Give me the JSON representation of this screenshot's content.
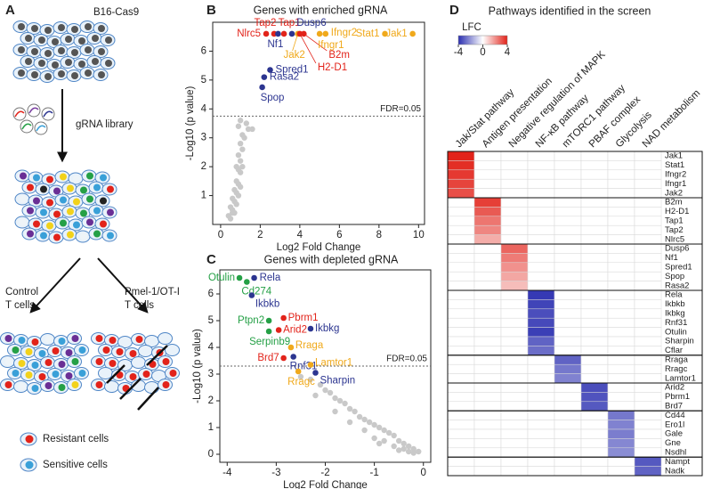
{
  "panel_labels": [
    "A",
    "B",
    "C",
    "D"
  ],
  "diagram": {
    "top": "B16-Cas9",
    "library": "gRNA library",
    "control": [
      "Control",
      "T cells"
    ],
    "treated": [
      "Pmel-1/OT-I",
      "T cells"
    ],
    "legend": [
      "Resistant cells",
      "Sensitive cells"
    ]
  },
  "chart_data": [
    {
      "type": "scatter",
      "title": "Genes with enriched gRNA",
      "xlabel": "Log2 Fold Change",
      "ylabel": "-Log10 (p value)",
      "xlim": [
        -0.4,
        10.3
      ],
      "ylim": [
        0,
        7
      ],
      "xticks": [
        0,
        2,
        4,
        6,
        8,
        10
      ],
      "yticks": [
        1,
        2,
        3,
        4,
        5,
        6
      ],
      "threshold": {
        "value": 3.75,
        "label": "FDR=0.05"
      },
      "background": {
        "color": "#c9c9c9",
        "x": [
          0.4,
          0.5,
          0.6,
          0.7,
          0.8,
          0.9,
          1.0,
          1.1,
          0.6,
          0.7,
          0.8,
          0.9,
          1.0,
          0.7,
          0.8,
          0.9,
          1.0,
          0.8,
          0.9,
          1.0,
          1.1,
          0.9,
          1.0,
          1.2,
          1.4,
          1.1,
          0.5,
          0.6,
          1.6,
          1.3
        ],
        "y": [
          0.3,
          0.6,
          0.9,
          1.2,
          1.5,
          1.9,
          2.2,
          2.6,
          0.5,
          0.8,
          1.1,
          1.4,
          1.8,
          0.4,
          0.7,
          1.0,
          1.3,
          2.0,
          2.4,
          2.8,
          3.1,
          3.4,
          3.6,
          3.0,
          3.3,
          2.0,
          0.2,
          0.4,
          3.3,
          3.5
        ]
      },
      "points": [
        {
          "label": "Tap2",
          "x": 2.7,
          "y": 6.6,
          "color": "#e2231a"
        },
        {
          "label": "Tap1",
          "x": 3.2,
          "y": 6.6,
          "color": "#e2231a"
        },
        {
          "label": "Dusp6",
          "x": 3.6,
          "y": 6.6,
          "color": "#2c3590"
        },
        {
          "label": "Nlrc5",
          "x": 2.3,
          "y": 6.6,
          "color": "#e2231a"
        },
        {
          "label": "Nf1",
          "x": 2.9,
          "y": 6.6,
          "color": "#2c3590"
        },
        {
          "label": "Jak2",
          "x": 3.9,
          "y": 6.6,
          "color": "#f0a91b"
        },
        {
          "label": "B2m",
          "x": 4.2,
          "y": 6.6,
          "color": "#e2231a"
        },
        {
          "label": "H2-D1",
          "x": 4.0,
          "y": 6.6,
          "color": "#e2231a"
        },
        {
          "label": "Ifngr1",
          "x": 5.0,
          "y": 6.6,
          "color": "#f0a91b"
        },
        {
          "label": "Ifngr2",
          "x": 5.3,
          "y": 6.6,
          "color": "#f0a91b"
        },
        {
          "label": "Stat1",
          "x": 8.3,
          "y": 6.6,
          "color": "#f0a91b"
        },
        {
          "label": "Jak1",
          "x": 9.7,
          "y": 6.6,
          "color": "#f0a91b"
        },
        {
          "label": "Spred1",
          "x": 2.5,
          "y": 5.35,
          "color": "#2c3590"
        },
        {
          "label": "Rasa2",
          "x": 2.2,
          "y": 5.1,
          "color": "#2c3590"
        },
        {
          "label": "Spop",
          "x": 2.1,
          "y": 4.75,
          "color": "#2c3590"
        }
      ]
    },
    {
      "type": "scatter",
      "title": "Genes with depleted gRNA",
      "xlabel": "Log2 Fold Change",
      "ylabel": "-Log10 (p value)",
      "xlim": [
        -4.15,
        0.15
      ],
      "ylim": [
        -0.3,
        6.9
      ],
      "xticks": [
        -4,
        -3,
        -2,
        -1,
        0
      ],
      "yticks": [
        0,
        1,
        2,
        3,
        4,
        5,
        6
      ],
      "threshold": {
        "value": 3.3,
        "label": "FDR=0.05"
      },
      "background": {
        "color": "#c9c9c9",
        "x": [
          -2.5,
          -2.3,
          -2.1,
          -2.0,
          -1.9,
          -1.8,
          -1.7,
          -1.6,
          -1.5,
          -1.4,
          -1.3,
          -1.2,
          -1.1,
          -1.0,
          -0.9,
          -0.8,
          -0.7,
          -0.6,
          -0.5,
          -0.4,
          -0.3,
          -0.2,
          -0.1,
          -1.5,
          -1.2,
          -1.0,
          -0.8,
          -0.6,
          -0.4,
          -0.3,
          -0.2,
          -1.8,
          -2.2,
          -0.9,
          -0.5
        ],
        "y": [
          2.9,
          2.8,
          2.6,
          2.4,
          2.3,
          2.1,
          2.0,
          1.9,
          1.7,
          1.6,
          1.4,
          1.3,
          1.2,
          1.1,
          1.0,
          0.9,
          0.8,
          0.7,
          0.5,
          0.4,
          0.3,
          0.2,
          0.1,
          1.2,
          0.9,
          0.6,
          0.5,
          0.3,
          0.2,
          0.1,
          0.05,
          1.6,
          2.2,
          0.4,
          0.15
        ]
      },
      "points": [
        {
          "label": "Otulin",
          "x": -3.75,
          "y": 6.6,
          "color": "#25a046"
        },
        {
          "label": "Rela",
          "x": -3.45,
          "y": 6.6,
          "color": "#2c3590"
        },
        {
          "label": "Cd274",
          "x": -3.6,
          "y": 6.45,
          "color": "#25a046"
        },
        {
          "label": "Ikbkb",
          "x": -3.5,
          "y": 5.95,
          "color": "#2c3590"
        },
        {
          "label": "Ptpn2",
          "x": -3.15,
          "y": 5.0,
          "color": "#25a046"
        },
        {
          "label": "Pbrm1",
          "x": -2.85,
          "y": 5.1,
          "color": "#e2231a"
        },
        {
          "label": "Arid2",
          "x": -2.95,
          "y": 4.65,
          "color": "#e2231a"
        },
        {
          "label": "Ikbkg",
          "x": -2.3,
          "y": 4.7,
          "color": "#2c3590"
        },
        {
          "label": "Serpinb9",
          "x": -3.15,
          "y": 4.6,
          "color": "#25a046"
        },
        {
          "label": "Rraga",
          "x": -2.7,
          "y": 4.0,
          "color": "#f0a91b"
        },
        {
          "label": "Brd7",
          "x": -2.85,
          "y": 3.6,
          "color": "#e2231a"
        },
        {
          "label": "Rnf31",
          "x": -2.65,
          "y": 3.65,
          "color": "#2c3590"
        },
        {
          "label": "Lamtor1",
          "x": -2.3,
          "y": 3.35,
          "color": "#f0a91b"
        },
        {
          "label": "Rragc",
          "x": -2.55,
          "y": 3.1,
          "color": "#f0a91b"
        },
        {
          "label": "Sharpin",
          "x": -2.2,
          "y": 3.05,
          "color": "#2c3590"
        }
      ]
    },
    {
      "type": "heatmap",
      "title": "Pathways identified in the screen",
      "colorbar_label": "LFC",
      "clim": [
        -4,
        4
      ],
      "cticks": [
        -4,
        0,
        4
      ],
      "colors": [
        "#2b2fb0",
        "#ffffff",
        "#e2231a"
      ],
      "columns": [
        "Jak/Stat pathway",
        "Antigen presentation",
        "Negative regulation of MAPK",
        "NF-κB pathway",
        "mTORC1 pathway",
        "PBAF complex",
        "Glycolysis",
        "NAD metabolism"
      ],
      "rows": [
        "Jak1",
        "Stat1",
        "Ifngr2",
        "Ifngr1",
        "Jak2",
        "B2m",
        "H2-D1",
        "Tap1",
        "Tap2",
        "Nlrc5",
        "Dusp6",
        "Nf1",
        "Spred1",
        "Spop",
        "Rasa2",
        "Rela",
        "Ikbkb",
        "Ikbkg",
        "Rnf31",
        "Otulin",
        "Sharpin",
        "Cflar",
        "Rraga",
        "Rragc",
        "Lamtor1",
        "Arid2",
        "Pbrm1",
        "Brd7",
        "Cd44",
        "Ero1l",
        "Gale",
        "Gne",
        "Nsdhl",
        "Nampt",
        "Nadk"
      ],
      "values": [
        [
          4,
          0,
          0,
          0,
          0,
          0,
          0,
          0
        ],
        [
          3.8,
          0,
          0,
          0,
          0,
          0,
          0,
          0
        ],
        [
          3.6,
          0,
          0,
          0,
          0,
          0,
          0,
          0
        ],
        [
          3.4,
          0,
          0,
          0,
          0,
          0,
          0,
          0
        ],
        [
          3.2,
          0,
          0,
          0,
          0,
          0,
          0,
          0
        ],
        [
          0,
          3.5,
          0,
          0,
          0,
          0,
          0,
          0
        ],
        [
          0,
          3.0,
          0,
          0,
          0,
          0,
          0,
          0
        ],
        [
          0,
          2.5,
          0,
          0,
          0,
          0,
          0,
          0
        ],
        [
          0,
          2.2,
          0,
          0,
          0,
          0,
          0,
          0
        ],
        [
          0,
          1.5,
          0,
          0,
          0,
          0,
          0,
          0
        ],
        [
          0,
          0,
          2.8,
          0,
          0,
          0,
          0,
          0
        ],
        [
          0,
          0,
          2.4,
          0,
          0,
          0,
          0,
          0
        ],
        [
          0,
          0,
          2.0,
          0,
          0,
          0,
          0,
          0
        ],
        [
          0,
          0,
          1.6,
          0,
          0,
          0,
          0,
          0
        ],
        [
          0,
          0,
          1.2,
          0,
          0,
          0,
          0,
          0
        ],
        [
          0,
          0,
          0,
          -3.8,
          0,
          0,
          0,
          0
        ],
        [
          0,
          0,
          0,
          -3.6,
          0,
          0,
          0,
          0
        ],
        [
          0,
          0,
          0,
          -3.4,
          0,
          0,
          0,
          0
        ],
        [
          0,
          0,
          0,
          -3.5,
          0,
          0,
          0,
          0
        ],
        [
          0,
          0,
          0,
          -3.7,
          0,
          0,
          0,
          0
        ],
        [
          0,
          0,
          0,
          -3.0,
          0,
          0,
          0,
          0
        ],
        [
          0,
          0,
          0,
          -2.8,
          0,
          0,
          0,
          0
        ],
        [
          0,
          0,
          0,
          0,
          -3.0,
          0,
          0,
          0
        ],
        [
          0,
          0,
          0,
          0,
          -2.6,
          0,
          0,
          0
        ],
        [
          0,
          0,
          0,
          0,
          -2.4,
          0,
          0,
          0
        ],
        [
          0,
          0,
          0,
          0,
          0,
          -3.4,
          0,
          0
        ],
        [
          0,
          0,
          0,
          0,
          0,
          -3.3,
          0,
          0
        ],
        [
          0,
          0,
          0,
          0,
          0,
          -3.2,
          0,
          0
        ],
        [
          0,
          0,
          0,
          0,
          0,
          0,
          -2.6,
          0
        ],
        [
          0,
          0,
          0,
          0,
          0,
          0,
          -2.4,
          0
        ],
        [
          0,
          0,
          0,
          0,
          0,
          0,
          -2.5,
          0
        ],
        [
          0,
          0,
          0,
          0,
          0,
          0,
          -2.3,
          0
        ],
        [
          0,
          0,
          0,
          0,
          0,
          0,
          -2.2,
          0
        ],
        [
          0,
          0,
          0,
          0,
          0,
          0,
          0,
          -3.2
        ],
        [
          0,
          0,
          0,
          0,
          0,
          0,
          0,
          -3.0
        ]
      ]
    }
  ]
}
